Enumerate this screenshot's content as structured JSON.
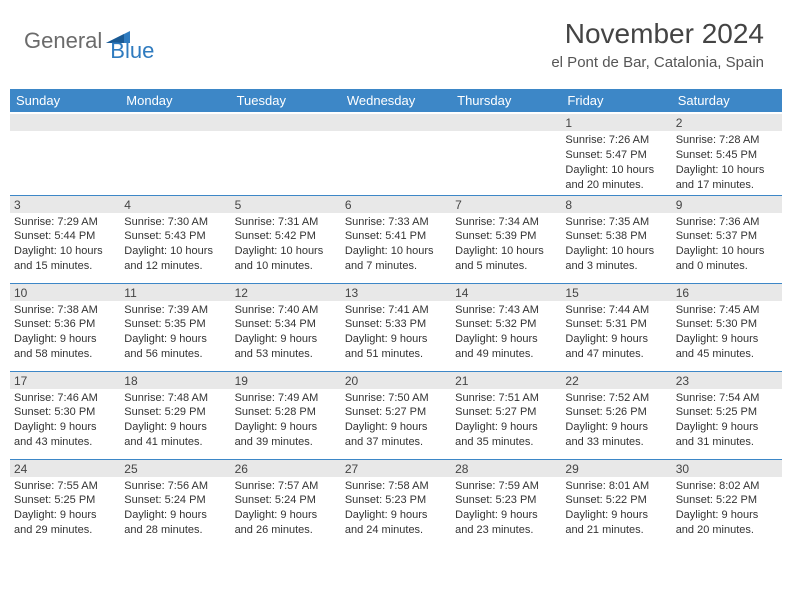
{
  "brand": {
    "part1": "General",
    "part2": "Blue"
  },
  "title": "November 2024",
  "location": "el Pont de Bar, Catalonia, Spain",
  "colors": {
    "header_bg": "#3d87c7",
    "daynum_bg": "#e8e8e8",
    "border": "#3d87c7",
    "logo_gray": "#6b6b6b",
    "logo_blue": "#2f7bbf"
  },
  "weekdays": [
    "Sunday",
    "Monday",
    "Tuesday",
    "Wednesday",
    "Thursday",
    "Friday",
    "Saturday"
  ],
  "weeks": [
    [
      {
        "day": "",
        "sunrise": "",
        "sunset": "",
        "daylight": ""
      },
      {
        "day": "",
        "sunrise": "",
        "sunset": "",
        "daylight": ""
      },
      {
        "day": "",
        "sunrise": "",
        "sunset": "",
        "daylight": ""
      },
      {
        "day": "",
        "sunrise": "",
        "sunset": "",
        "daylight": ""
      },
      {
        "day": "",
        "sunrise": "",
        "sunset": "",
        "daylight": ""
      },
      {
        "day": "1",
        "sunrise": "Sunrise: 7:26 AM",
        "sunset": "Sunset: 5:47 PM",
        "daylight": "Daylight: 10 hours and 20 minutes."
      },
      {
        "day": "2",
        "sunrise": "Sunrise: 7:28 AM",
        "sunset": "Sunset: 5:45 PM",
        "daylight": "Daylight: 10 hours and 17 minutes."
      }
    ],
    [
      {
        "day": "3",
        "sunrise": "Sunrise: 7:29 AM",
        "sunset": "Sunset: 5:44 PM",
        "daylight": "Daylight: 10 hours and 15 minutes."
      },
      {
        "day": "4",
        "sunrise": "Sunrise: 7:30 AM",
        "sunset": "Sunset: 5:43 PM",
        "daylight": "Daylight: 10 hours and 12 minutes."
      },
      {
        "day": "5",
        "sunrise": "Sunrise: 7:31 AM",
        "sunset": "Sunset: 5:42 PM",
        "daylight": "Daylight: 10 hours and 10 minutes."
      },
      {
        "day": "6",
        "sunrise": "Sunrise: 7:33 AM",
        "sunset": "Sunset: 5:41 PM",
        "daylight": "Daylight: 10 hours and 7 minutes."
      },
      {
        "day": "7",
        "sunrise": "Sunrise: 7:34 AM",
        "sunset": "Sunset: 5:39 PM",
        "daylight": "Daylight: 10 hours and 5 minutes."
      },
      {
        "day": "8",
        "sunrise": "Sunrise: 7:35 AM",
        "sunset": "Sunset: 5:38 PM",
        "daylight": "Daylight: 10 hours and 3 minutes."
      },
      {
        "day": "9",
        "sunrise": "Sunrise: 7:36 AM",
        "sunset": "Sunset: 5:37 PM",
        "daylight": "Daylight: 10 hours and 0 minutes."
      }
    ],
    [
      {
        "day": "10",
        "sunrise": "Sunrise: 7:38 AM",
        "sunset": "Sunset: 5:36 PM",
        "daylight": "Daylight: 9 hours and 58 minutes."
      },
      {
        "day": "11",
        "sunrise": "Sunrise: 7:39 AM",
        "sunset": "Sunset: 5:35 PM",
        "daylight": "Daylight: 9 hours and 56 minutes."
      },
      {
        "day": "12",
        "sunrise": "Sunrise: 7:40 AM",
        "sunset": "Sunset: 5:34 PM",
        "daylight": "Daylight: 9 hours and 53 minutes."
      },
      {
        "day": "13",
        "sunrise": "Sunrise: 7:41 AM",
        "sunset": "Sunset: 5:33 PM",
        "daylight": "Daylight: 9 hours and 51 minutes."
      },
      {
        "day": "14",
        "sunrise": "Sunrise: 7:43 AM",
        "sunset": "Sunset: 5:32 PM",
        "daylight": "Daylight: 9 hours and 49 minutes."
      },
      {
        "day": "15",
        "sunrise": "Sunrise: 7:44 AM",
        "sunset": "Sunset: 5:31 PM",
        "daylight": "Daylight: 9 hours and 47 minutes."
      },
      {
        "day": "16",
        "sunrise": "Sunrise: 7:45 AM",
        "sunset": "Sunset: 5:30 PM",
        "daylight": "Daylight: 9 hours and 45 minutes."
      }
    ],
    [
      {
        "day": "17",
        "sunrise": "Sunrise: 7:46 AM",
        "sunset": "Sunset: 5:30 PM",
        "daylight": "Daylight: 9 hours and 43 minutes."
      },
      {
        "day": "18",
        "sunrise": "Sunrise: 7:48 AM",
        "sunset": "Sunset: 5:29 PM",
        "daylight": "Daylight: 9 hours and 41 minutes."
      },
      {
        "day": "19",
        "sunrise": "Sunrise: 7:49 AM",
        "sunset": "Sunset: 5:28 PM",
        "daylight": "Daylight: 9 hours and 39 minutes."
      },
      {
        "day": "20",
        "sunrise": "Sunrise: 7:50 AM",
        "sunset": "Sunset: 5:27 PM",
        "daylight": "Daylight: 9 hours and 37 minutes."
      },
      {
        "day": "21",
        "sunrise": "Sunrise: 7:51 AM",
        "sunset": "Sunset: 5:27 PM",
        "daylight": "Daylight: 9 hours and 35 minutes."
      },
      {
        "day": "22",
        "sunrise": "Sunrise: 7:52 AM",
        "sunset": "Sunset: 5:26 PM",
        "daylight": "Daylight: 9 hours and 33 minutes."
      },
      {
        "day": "23",
        "sunrise": "Sunrise: 7:54 AM",
        "sunset": "Sunset: 5:25 PM",
        "daylight": "Daylight: 9 hours and 31 minutes."
      }
    ],
    [
      {
        "day": "24",
        "sunrise": "Sunrise: 7:55 AM",
        "sunset": "Sunset: 5:25 PM",
        "daylight": "Daylight: 9 hours and 29 minutes."
      },
      {
        "day": "25",
        "sunrise": "Sunrise: 7:56 AM",
        "sunset": "Sunset: 5:24 PM",
        "daylight": "Daylight: 9 hours and 28 minutes."
      },
      {
        "day": "26",
        "sunrise": "Sunrise: 7:57 AM",
        "sunset": "Sunset: 5:24 PM",
        "daylight": "Daylight: 9 hours and 26 minutes."
      },
      {
        "day": "27",
        "sunrise": "Sunrise: 7:58 AM",
        "sunset": "Sunset: 5:23 PM",
        "daylight": "Daylight: 9 hours and 24 minutes."
      },
      {
        "day": "28",
        "sunrise": "Sunrise: 7:59 AM",
        "sunset": "Sunset: 5:23 PM",
        "daylight": "Daylight: 9 hours and 23 minutes."
      },
      {
        "day": "29",
        "sunrise": "Sunrise: 8:01 AM",
        "sunset": "Sunset: 5:22 PM",
        "daylight": "Daylight: 9 hours and 21 minutes."
      },
      {
        "day": "30",
        "sunrise": "Sunrise: 8:02 AM",
        "sunset": "Sunset: 5:22 PM",
        "daylight": "Daylight: 9 hours and 20 minutes."
      }
    ]
  ]
}
